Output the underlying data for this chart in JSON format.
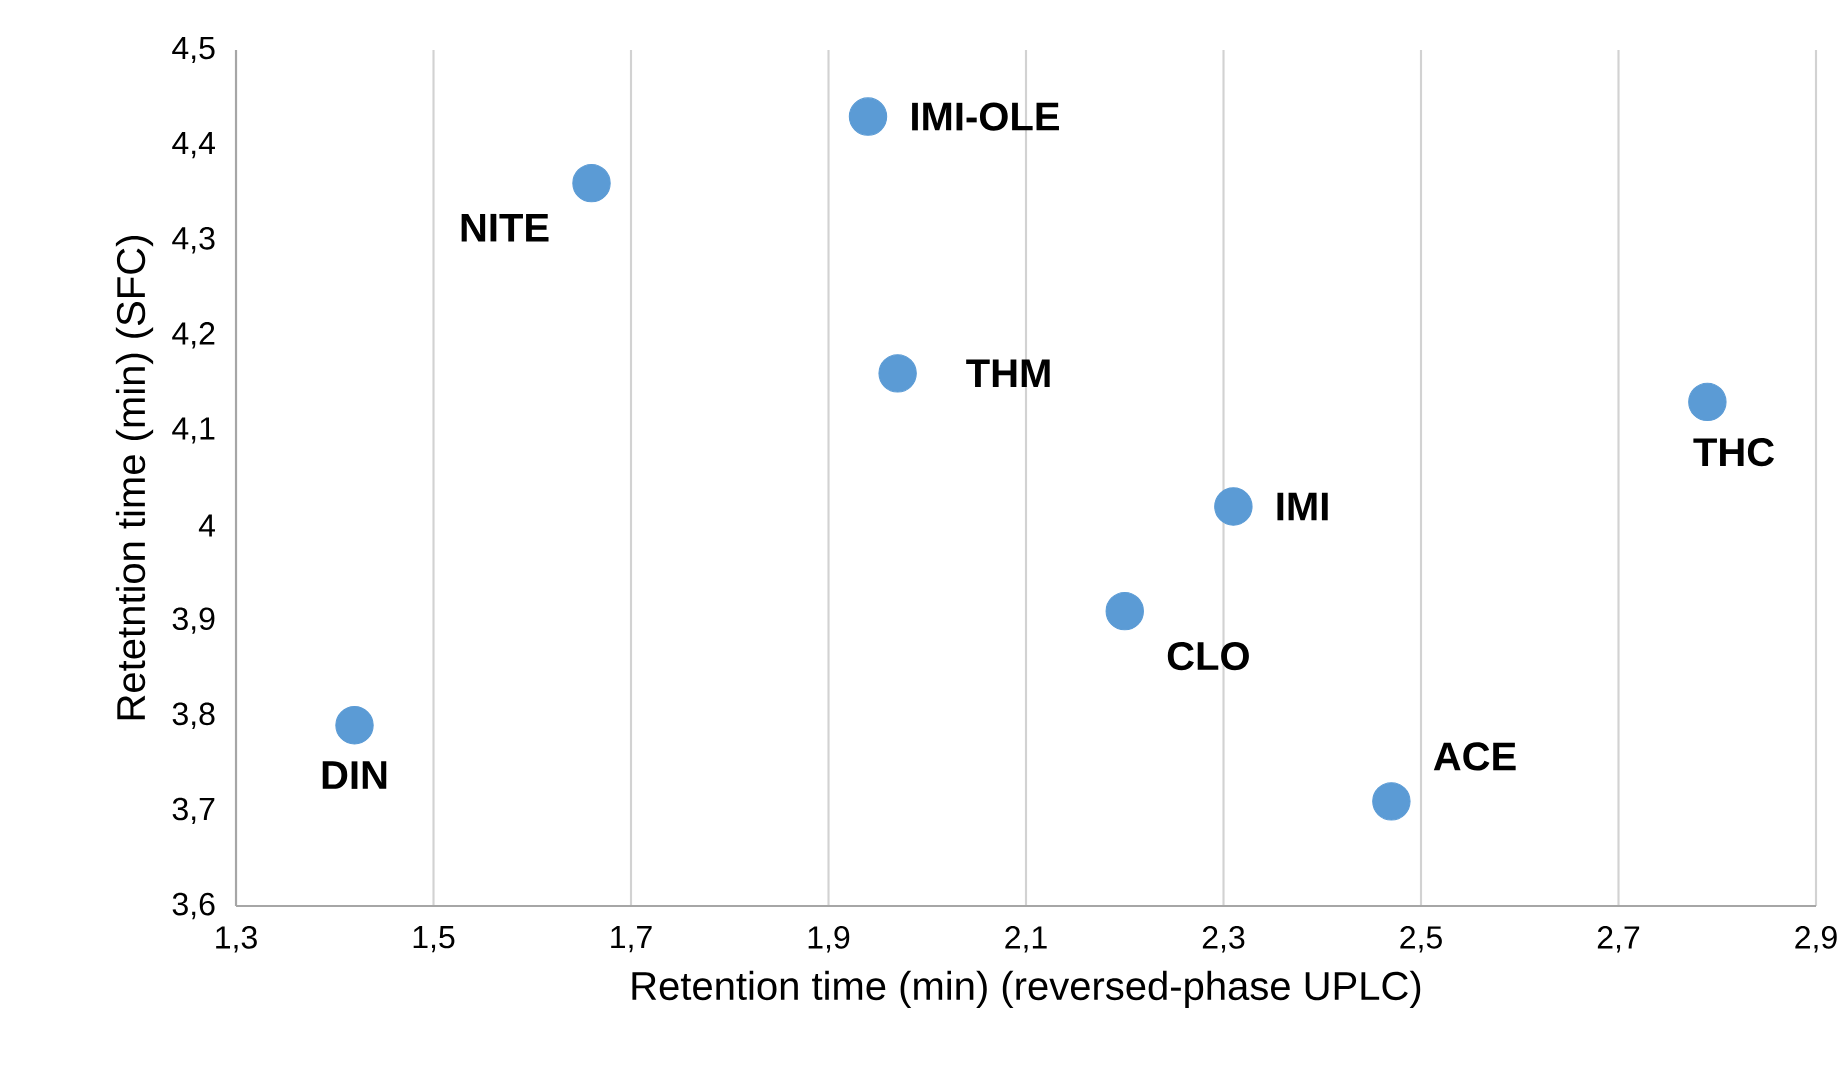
{
  "chart_data": {
    "type": "scatter",
    "xlabel": "Retention time (min) (reversed-phase UPLC)",
    "ylabel": "Retetntion time (min) (SFC)",
    "x": [
      1.42,
      1.66,
      1.94,
      1.97,
      2.2,
      2.31,
      2.47,
      2.79
    ],
    "values": [
      3.79,
      4.36,
      4.43,
      4.16,
      3.91,
      4.02,
      3.71,
      4.13
    ],
    "color": "#5b9bd5",
    "marker": "circle",
    "grid": "x",
    "xlim": [
      1.3,
      2.9
    ],
    "ylim": [
      3.6,
      4.5
    ],
    "xticks": [
      {
        "value": 1.3,
        "label": "1,3"
      },
      {
        "value": 1.5,
        "label": "1,5"
      },
      {
        "value": 1.7,
        "label": "1,7"
      },
      {
        "value": 1.9,
        "label": "1,9"
      },
      {
        "value": 2.1,
        "label": "2,1"
      },
      {
        "value": 2.3,
        "label": "2,3"
      },
      {
        "value": 2.5,
        "label": "2,5"
      },
      {
        "value": 2.7,
        "label": "2,7"
      },
      {
        "value": 2.9,
        "label": "2,9"
      }
    ],
    "yticks": [
      {
        "value": 3.6,
        "label": "3,6"
      },
      {
        "value": 3.7,
        "label": "3,7"
      },
      {
        "value": 3.8,
        "label": "3,8"
      },
      {
        "value": 3.9,
        "label": "3,9"
      },
      4,
      {
        "value": 4.1,
        "label": "4,1"
      },
      {
        "value": 4.2,
        "label": "4,2"
      },
      {
        "value": 4.3,
        "label": "4,3"
      },
      {
        "value": 4.4,
        "label": "4,4"
      },
      {
        "value": 4.5,
        "label": "4,5"
      }
    ],
    "annotations": [
      {
        "text": "DIN",
        "x": 1.42,
        "y": 3.79
      },
      {
        "text": "NITE",
        "x": 1.66,
        "y": 4.36
      },
      {
        "text": "IMI-OLE",
        "x": 1.94,
        "y": 4.43
      },
      {
        "text": "THM",
        "x": 1.97,
        "y": 4.16
      },
      {
        "text": "CLO",
        "x": 2.2,
        "y": 3.91
      },
      {
        "text": "IMI",
        "x": 2.31,
        "y": 4.02
      },
      {
        "text": "ACE",
        "x": 2.47,
        "y": 3.71
      },
      {
        "text": "THC",
        "x": 2.79,
        "y": 4.13
      }
    ]
  }
}
